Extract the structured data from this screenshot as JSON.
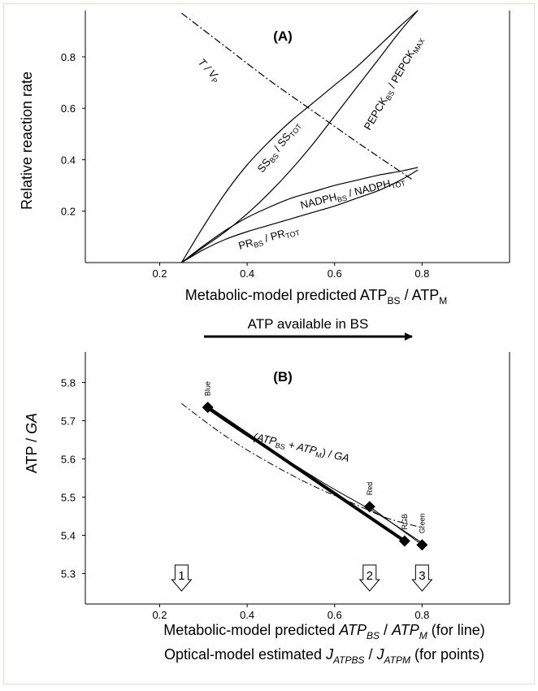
{
  "chart_data": [
    {
      "panel": "(A)",
      "type": "line",
      "ylabel": "Relative reaction rate",
      "xlabel": {
        "main": "Metabolic-model predicted ATP",
        "s1": "BS",
        "mid": " / ATP",
        "s2": "M"
      },
      "xlim": [
        0.03,
        1.0
      ],
      "ylim": [
        0.0,
        0.98
      ],
      "xticks": [
        "0.2",
        "0.4",
        "0.6",
        "0.8"
      ],
      "yticks": [
        "0.2",
        "0.4",
        "0.6",
        "0.8"
      ],
      "series": [
        {
          "label_main": "T / V",
          "label_sub": "P",
          "style": "dashdot",
          "x": [
            0.25,
            0.35,
            0.45,
            0.55,
            0.65,
            0.78
          ],
          "y": [
            0.97,
            0.84,
            0.71,
            0.59,
            0.47,
            0.32
          ]
        },
        {
          "label_main": "SS",
          "label_sub": "BS",
          "label_main2": " / SS",
          "label_sub2": "TOT",
          "style": "solid",
          "x": [
            0.25,
            0.3,
            0.35,
            0.4,
            0.45,
            0.5,
            0.55,
            0.6,
            0.65,
            0.7,
            0.75,
            0.79
          ],
          "y": [
            0.0,
            0.14,
            0.27,
            0.38,
            0.47,
            0.55,
            0.62,
            0.69,
            0.76,
            0.84,
            0.92,
            0.98
          ]
        },
        {
          "label_main": "PEPCK",
          "label_sub": "BS",
          "label_main2": " / PEPCK",
          "label_sub2": "MAX",
          "style": "solid",
          "x": [
            0.25,
            0.3,
            0.35,
            0.4,
            0.45,
            0.5,
            0.55,
            0.6,
            0.65,
            0.7,
            0.75,
            0.79
          ],
          "y": [
            0.0,
            0.06,
            0.12,
            0.19,
            0.27,
            0.36,
            0.46,
            0.57,
            0.68,
            0.79,
            0.9,
            0.98
          ]
        },
        {
          "label_main": "NADPH",
          "label_sub": "BS",
          "label_main2": " / NADPH",
          "label_sub2": "TOT",
          "style": "solid",
          "x": [
            0.25,
            0.3,
            0.35,
            0.4,
            0.45,
            0.5,
            0.55,
            0.6,
            0.65,
            0.7,
            0.75,
            0.79
          ],
          "y": [
            0.0,
            0.065,
            0.125,
            0.175,
            0.215,
            0.25,
            0.275,
            0.3,
            0.32,
            0.34,
            0.355,
            0.37
          ]
        },
        {
          "label_main": "PR",
          "label_sub": "BS",
          "label_main2": " / PR",
          "label_sub2": "TOT",
          "style": "solid",
          "x": [
            0.25,
            0.3,
            0.35,
            0.4,
            0.45,
            0.5,
            0.55,
            0.6,
            0.65,
            0.7,
            0.75,
            0.79
          ],
          "y": [
            0.0,
            0.05,
            0.09,
            0.12,
            0.145,
            0.17,
            0.195,
            0.22,
            0.25,
            0.28,
            0.32,
            0.36
          ]
        }
      ]
    },
    {
      "panel": "(B)",
      "type": "scatter",
      "ylabel_main": "ATP / ",
      "ylabel_ital": "GA",
      "arrow_label": "ATP available in BS",
      "xlabel_line1": {
        "pre": "Metabolic-model predicted ",
        "a": "ATP",
        "as": "BS",
        "mid": " / ",
        "b": "ATP",
        "bs": "M",
        "post": " (for line)"
      },
      "xlabel_line2": {
        "pre": "Optical-model estimated ",
        "a": "J",
        "as": "ATPBS",
        "mid": " / ",
        "b": "J",
        "bs": "ATPM",
        "post": " (for points)"
      },
      "xlim": [
        0.03,
        1.0
      ],
      "ylim": [
        5.22,
        5.88
      ],
      "xticks": [
        "0.2",
        "0.4",
        "0.6",
        "0.8"
      ],
      "yticks": [
        "5.3",
        "5.4",
        "5.5",
        "5.6",
        "5.7",
        "5.8"
      ],
      "curve_label": {
        "pre": "(ATP",
        "s1": "BS",
        "mid": " + ATP",
        "s2": "M",
        "post": ") / ",
        "ital": "GA"
      },
      "dashed_line": {
        "x": [
          0.25,
          0.35,
          0.45,
          0.55,
          0.65,
          0.72,
          0.8
        ],
        "y": [
          5.745,
          5.66,
          5.59,
          5.53,
          5.48,
          5.445,
          5.42
        ]
      },
      "solid_line": {
        "x": [
          0.31,
          0.4,
          0.5,
          0.6,
          0.7,
          0.8
        ],
        "y": [
          5.73,
          5.66,
          5.59,
          5.52,
          5.455,
          5.38
        ]
      },
      "points": [
        {
          "name": "Blue",
          "x": 0.31,
          "y": 5.735
        },
        {
          "name": "Red",
          "x": 0.68,
          "y": 5.475
        },
        {
          "name": "RGB",
          "x": 0.76,
          "y": 5.385
        },
        {
          "name": "Green",
          "x": 0.8,
          "y": 5.375
        }
      ],
      "markers": [
        {
          "label": "1",
          "x": 0.25
        },
        {
          "label": "2",
          "x": 0.68
        },
        {
          "label": "3",
          "x": 0.8
        }
      ]
    }
  ]
}
